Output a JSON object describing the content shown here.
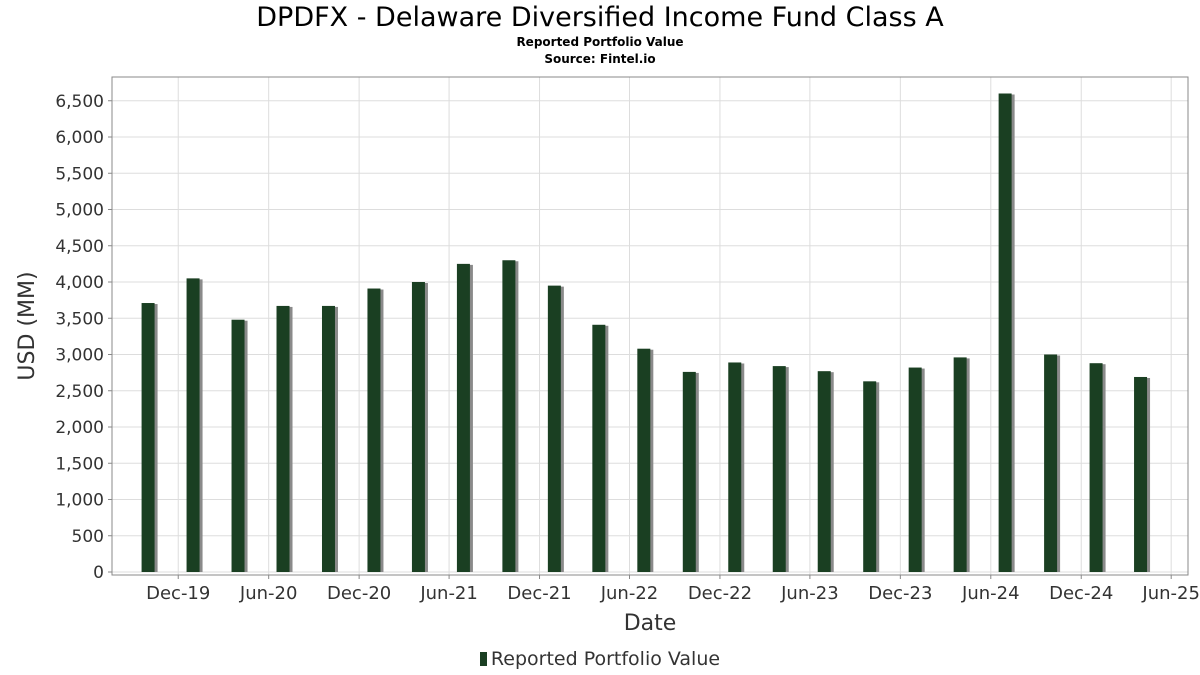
{
  "chart_data": {
    "type": "bar",
    "title": "DPDFX - Delaware Diversified Income Fund Class A",
    "subtitles": [
      "Reported Portfolio Value",
      "Source: Fintel.io"
    ],
    "xlabel": "Date",
    "ylabel": "USD (MM)",
    "ylim": [
      0,
      6800
    ],
    "xlim": [
      "2019-07-20",
      "2025-07-05"
    ],
    "yticks": [
      0,
      500,
      1000,
      1500,
      2000,
      2500,
      3000,
      3500,
      4000,
      4500,
      5000,
      5500,
      6000,
      6500
    ],
    "ytick_labels": [
      "0",
      "500",
      "1,000",
      "1,500",
      "2,000",
      "2,500",
      "3,000",
      "3,500",
      "4,000",
      "4,500",
      "5,000",
      "5,500",
      "6,000",
      "6,500"
    ],
    "xticks": [
      {
        "date": "2019-12-01",
        "label": "Dec-19"
      },
      {
        "date": "2020-06-01",
        "label": "Jun-20"
      },
      {
        "date": "2020-12-01",
        "label": "Dec-20"
      },
      {
        "date": "2021-06-01",
        "label": "Jun-21"
      },
      {
        "date": "2021-12-01",
        "label": "Dec-21"
      },
      {
        "date": "2022-06-01",
        "label": "Jun-22"
      },
      {
        "date": "2022-12-01",
        "label": "Dec-22"
      },
      {
        "date": "2023-06-01",
        "label": "Jun-23"
      },
      {
        "date": "2023-12-01",
        "label": "Dec-23"
      },
      {
        "date": "2024-06-01",
        "label": "Jun-24"
      },
      {
        "date": "2024-12-01",
        "label": "Dec-24"
      },
      {
        "date": "2025-06-01",
        "label": "Jun-25"
      }
    ],
    "grid": true,
    "legend_position": "bottom-center",
    "series": [
      {
        "name": "Reported Portfolio Value",
        "color": "#1a3f22",
        "points": [
          {
            "date": "2019-10-01",
            "value": 3710
          },
          {
            "date": "2019-12-31",
            "value": 4050
          },
          {
            "date": "2020-03-31",
            "value": 3480
          },
          {
            "date": "2020-06-30",
            "value": 3670
          },
          {
            "date": "2020-09-30",
            "value": 3670
          },
          {
            "date": "2020-12-31",
            "value": 3910
          },
          {
            "date": "2021-03-31",
            "value": 4000
          },
          {
            "date": "2021-06-30",
            "value": 4250
          },
          {
            "date": "2021-09-30",
            "value": 4300
          },
          {
            "date": "2021-12-31",
            "value": 3950
          },
          {
            "date": "2022-03-31",
            "value": 3410
          },
          {
            "date": "2022-06-30",
            "value": 3080
          },
          {
            "date": "2022-09-30",
            "value": 2760
          },
          {
            "date": "2022-12-31",
            "value": 2890
          },
          {
            "date": "2023-03-31",
            "value": 2840
          },
          {
            "date": "2023-06-30",
            "value": 2770
          },
          {
            "date": "2023-09-30",
            "value": 2630
          },
          {
            "date": "2023-12-31",
            "value": 2820
          },
          {
            "date": "2024-03-31",
            "value": 2960
          },
          {
            "date": "2024-06-30",
            "value": 6600
          },
          {
            "date": "2024-09-30",
            "value": 3000
          },
          {
            "date": "2024-12-31",
            "value": 2880
          },
          {
            "date": "2025-03-31",
            "value": 2690
          }
        ]
      }
    ]
  }
}
